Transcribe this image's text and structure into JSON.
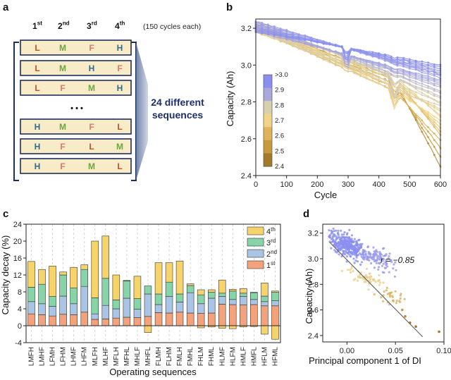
{
  "panel_labels": {
    "a": "a",
    "b": "b",
    "c": "c",
    "d": "d"
  },
  "panel_a": {
    "headers": [
      {
        "num": "1",
        "sup": "st"
      },
      {
        "num": "2",
        "sup": "nd"
      },
      {
        "num": "3",
        "sup": "rd"
      },
      {
        "num": "4",
        "sup": "th"
      }
    ],
    "note": "(150 cycles each)",
    "rows": [
      [
        "L",
        "M",
        "F",
        "H"
      ],
      [
        "L",
        "M",
        "H",
        "F"
      ],
      [
        "L",
        "F",
        "M",
        "H"
      ],
      [
        "H",
        "M",
        "F",
        "L"
      ],
      [
        "H",
        "F",
        "L",
        "M"
      ],
      [
        "H",
        "F",
        "M",
        "L"
      ]
    ],
    "ellipsis": "• • •",
    "callout_line1": "24 different",
    "callout_line2": "sequences",
    "letter_colors": {
      "L": "#b5552a",
      "M": "#6aa83e",
      "F": "#d97a68",
      "H": "#2f6b8f"
    },
    "box_fill": "#f8ebc8"
  },
  "chart_data": [
    {
      "id": "b",
      "type": "line",
      "title": "",
      "xlabel": "Cycle",
      "ylabel": "Capacity (Ah)",
      "xlim": [
        0,
        600
      ],
      "ylim": [
        2.4,
        3.25
      ],
      "xticks": [
        0,
        100,
        200,
        300,
        400,
        500,
        600
      ],
      "yticks": [
        2.4,
        2.6,
        2.8,
        3.0,
        3.2
      ],
      "ytick_labels": [
        "2.4",
        "2.6",
        "2.8",
        "3.0",
        "3.2"
      ],
      "colorbar_ticks": [
        ">3.0",
        "2.9",
        "2.8",
        "2.7",
        "2.6",
        "2.5",
        "2.4"
      ],
      "colorbar_colors": [
        "#8a8ef0",
        "#a9a9de",
        "#d8cfae",
        "#f2d488",
        "#ddb45a",
        "#c89a3c",
        "#a37a2a"
      ],
      "series_final_capacity": [
        3.0,
        2.99,
        2.98,
        2.97,
        2.96,
        2.95,
        2.95,
        2.94,
        2.93,
        2.92,
        2.91,
        2.9,
        2.89,
        2.88,
        2.86,
        2.85,
        2.83,
        2.82,
        2.8,
        2.79,
        2.78,
        2.76,
        2.75,
        2.73,
        2.72,
        2.7,
        2.68,
        2.66,
        2.64,
        2.62,
        2.59,
        2.55,
        2.5,
        2.45
      ]
    },
    {
      "id": "c",
      "type": "bar",
      "title": "",
      "xlabel": "Operating sequences",
      "ylabel": "Capacity decay (%)",
      "ylim": [
        -4,
        24
      ],
      "yticks": [
        -4,
        0,
        4,
        8,
        12,
        16,
        20,
        24
      ],
      "categories": [
        "LMFH",
        "LMHF",
        "LFMH",
        "LFHM",
        "LHMF",
        "LHFM",
        "MLFH",
        "MLHF",
        "MFLH",
        "MFHL",
        "MHLF",
        "MHFL",
        "FLMH",
        "FLHM",
        "FMLH",
        "FMHL",
        "FHLM",
        "FHML",
        "HLMF",
        "HLFM",
        "HMLF",
        "HMFL",
        "HFLM",
        "HFML"
      ],
      "series": [
        {
          "name": "1st",
          "color": "#f4a27c",
          "values": [
            2.8,
            2.6,
            2.3,
            2.7,
            2.6,
            3.2,
            1.5,
            1.6,
            1.8,
            2.0,
            1.9,
            2.2,
            3.1,
            3.0,
            3.2,
            3.0,
            2.9,
            3.0,
            5.1,
            5.0,
            4.9,
            5.0,
            4.7,
            4.7
          ]
        },
        {
          "name": "2nd",
          "color": "#a9c4e4",
          "values": [
            2.9,
            2.6,
            2.3,
            4.3,
            2.6,
            6.1,
            1.3,
            3.2,
            2.2,
            4.5,
            2.0,
            5.3,
            1.9,
            3.9,
            2.4,
            4.8,
            2.3,
            3.5,
            1.8,
            1.2,
            2.0,
            1.2,
            1.0,
            1.2
          ]
        },
        {
          "name": "3rd",
          "color": "#86d4a7",
          "values": [
            3.4,
            4.6,
            2.3,
            5.0,
            3.7,
            4.0,
            3.8,
            6.4,
            2.1,
            4.1,
            2.5,
            1.9,
            2.5,
            3.4,
            1.9,
            1.7,
            2.1,
            1.4,
            0.8,
            2.0,
            0.8,
            1.6,
            1.3,
            2.0
          ]
        },
        {
          "name": "4th",
          "color": "#f7d46b",
          "values": [
            6.1,
            3.5,
            7.2,
            0.7,
            4.9,
            1.1,
            13.4,
            10.0,
            5.9,
            0.1,
            5.3,
            0.0,
            7.4,
            4.6,
            7.8,
            0.4,
            1.2,
            0.6,
            3.1,
            0.4,
            1.1,
            0.1,
            3.1,
            0.3
          ]
        },
        {
          "name": "negative",
          "color": "#f7d46b",
          "values": [
            0,
            0,
            0,
            0,
            0,
            0,
            0,
            0,
            0,
            0,
            0,
            -1.6,
            0,
            0,
            0,
            0,
            -0.5,
            -0.3,
            -0.6,
            -0.7,
            -0.3,
            -0.2,
            -2.0,
            -3.2
          ]
        }
      ],
      "legend": [
        {
          "num": "4",
          "sup": "th",
          "color": "#f7d46b"
        },
        {
          "num": "3",
          "sup": "rd",
          "color": "#86d4a7"
        },
        {
          "num": "2",
          "sup": "nd",
          "color": "#a9c4e4"
        },
        {
          "num": "1",
          "sup": "st",
          "color": "#f4a27c"
        }
      ]
    },
    {
      "id": "d",
      "type": "scatter",
      "title": "",
      "xlabel": "Principal component 1 of DI",
      "ylabel": "Capacity (Ah)",
      "xlim": [
        -0.025,
        0.1
      ],
      "ylim": [
        2.35,
        3.27
      ],
      "xticks": [
        0.0,
        0.05,
        0.1
      ],
      "xtick_labels": [
        "0.00",
        "0.05",
        "0.10"
      ],
      "yticks": [
        2.4,
        2.6,
        2.8,
        3.0,
        3.2
      ],
      "ytick_labels": [
        "2.4",
        "2.6",
        "2.8",
        "3.0",
        "3.2"
      ],
      "annotation": "r = −0.85",
      "fit_line": {
        "x": [
          -0.018,
          0.078
        ],
        "y": [
          3.13,
          2.39
        ]
      },
      "clusters": [
        {
          "cx": 0.0,
          "cy": 3.1,
          "sx": 0.012,
          "sy": 0.06,
          "n": 320,
          "color": "#8a8ef0"
        },
        {
          "cx": 0.03,
          "cy": 3.01,
          "sx": 0.012,
          "sy": 0.06,
          "n": 110,
          "color": "#9a9ae8"
        },
        {
          "cx": 0.02,
          "cy": 2.85,
          "sx": 0.01,
          "sy": 0.04,
          "n": 60,
          "color": "#ead08f"
        },
        {
          "cx": 0.045,
          "cy": 2.7,
          "sx": 0.008,
          "sy": 0.05,
          "n": 30,
          "color": "#d8b25c"
        }
      ],
      "outliers": [
        {
          "x": 0.065,
          "y": 2.5,
          "color": "#a37a2a"
        },
        {
          "x": 0.071,
          "y": 2.47,
          "color": "#a37a2a"
        },
        {
          "x": 0.06,
          "y": 2.55,
          "color": "#b88a35"
        },
        {
          "x": 0.095,
          "y": 2.43,
          "color": "#a37a2a"
        },
        {
          "x": 0.057,
          "y": 2.6,
          "color": "#c89a3c"
        }
      ]
    }
  ]
}
